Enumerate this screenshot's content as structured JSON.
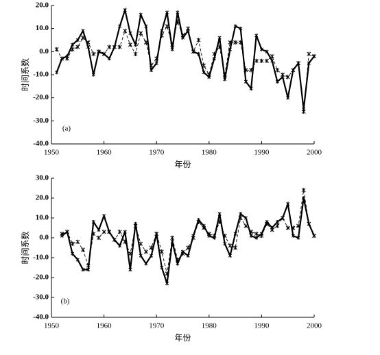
{
  "chart_data": [
    {
      "type": "line",
      "annotation": "(a)",
      "xlabel": "年份",
      "ylabel": "时间系数",
      "x": [
        1951,
        1952,
        1953,
        1954,
        1955,
        1956,
        1957,
        1958,
        1959,
        1960,
        1961,
        1962,
        1963,
        1964,
        1965,
        1966,
        1967,
        1968,
        1969,
        1970,
        1971,
        1972,
        1973,
        1974,
        1975,
        1976,
        1977,
        1978,
        1979,
        1980,
        1981,
        1982,
        1983,
        1984,
        1985,
        1986,
        1987,
        1988,
        1989,
        1990,
        1991,
        1992,
        1993,
        1994,
        1995,
        1996,
        1997,
        1998,
        1999,
        2000
      ],
      "series": [
        {
          "color": "#000000",
          "style": "solid",
          "values": [
            -9,
            -3,
            -2,
            3,
            5,
            9,
            2,
            -10,
            0,
            -1,
            -3,
            2,
            11,
            18,
            8,
            3,
            16,
            11,
            -8,
            -5,
            9,
            17,
            1,
            17,
            6,
            9,
            0,
            -1,
            -9,
            -11,
            -3,
            6,
            -12,
            1,
            11,
            10,
            -13,
            -16,
            7,
            1,
            0,
            -4,
            -13,
            -11,
            -20,
            -8,
            -5,
            -25,
            -5,
            -2
          ]
        },
        {
          "color": "#000000",
          "style": "dashed",
          "values": [
            1,
            -3,
            -3,
            1,
            2,
            6,
            4,
            -1,
            0,
            -1,
            2,
            2,
            2,
            9,
            3,
            -1,
            8,
            4,
            -6,
            -3,
            7,
            11,
            3,
            13,
            7,
            10,
            0,
            5,
            -6,
            -10,
            -1,
            2,
            -10,
            4,
            4,
            4,
            -8,
            -8,
            -4,
            -4,
            -4,
            -2,
            -8,
            -10,
            -11,
            -8,
            -5,
            -26,
            -1,
            -2
          ]
        }
      ],
      "xlim": [
        1950,
        2000
      ],
      "xticks": [
        1950,
        1960,
        1970,
        1980,
        1990,
        2000
      ],
      "ylim": [
        -40,
        20
      ],
      "yticks": [
        {
          "value": -40,
          "label": "-40.0"
        },
        {
          "value": -30,
          "label": "-30.0"
        },
        {
          "value": -20,
          "label": "-20.0"
        },
        {
          "value": -10,
          "label": "-10.0"
        },
        {
          "value": 0,
          "label": "0.0"
        },
        {
          "value": 10,
          "label": "10.0"
        },
        {
          "value": 20,
          "label": "20.0"
        }
      ]
    },
    {
      "type": "line",
      "annotation": "(b)",
      "xlabel": "年份",
      "ylabel": "时间系数",
      "x": [
        1952,
        1953,
        1954,
        1955,
        1956,
        1957,
        1958,
        1959,
        1960,
        1961,
        1962,
        1963,
        1964,
        1965,
        1966,
        1967,
        1968,
        1969,
        1970,
        1971,
        1972,
        1973,
        1974,
        1975,
        1976,
        1977,
        1978,
        1979,
        1980,
        1981,
        1982,
        1983,
        1984,
        1985,
        1986,
        1987,
        1988,
        1989,
        1990,
        1991,
        1992,
        1993,
        1994,
        1995,
        1996,
        1997,
        1998,
        1999,
        2000
      ],
      "series": [
        {
          "color": "#000000",
          "style": "solid",
          "values": [
            1,
            3,
            -8,
            -11,
            -16,
            -16,
            8,
            4,
            11,
            3,
            -1,
            -4,
            3,
            -16,
            7,
            -9,
            -13,
            -9,
            2,
            -15,
            -23,
            -2,
            -13,
            -7,
            -9,
            1,
            9,
            6,
            1,
            0,
            12,
            -3,
            -9,
            2,
            12,
            10,
            1,
            0,
            2,
            8,
            5,
            8,
            10,
            17,
            1,
            0,
            20,
            7,
            1
          ]
        },
        {
          "color": "#000000",
          "style": "dashed",
          "values": [
            2,
            3,
            -3,
            -2,
            -6,
            -14,
            2,
            0,
            3,
            3,
            -1,
            3,
            -2,
            -8,
            6,
            -3,
            -7,
            -5,
            2,
            -7,
            -18,
            0,
            -11,
            -8,
            -5,
            0,
            8,
            5,
            2,
            1,
            8,
            1,
            -4,
            -5,
            10,
            6,
            3,
            2,
            1,
            7,
            4,
            6,
            10,
            5,
            5,
            6,
            24,
            7,
            1
          ]
        }
      ],
      "xlim": [
        1950,
        2000
      ],
      "xticks": [
        1950,
        1960,
        1970,
        1980,
        1990,
        2000
      ],
      "ylim": [
        -40,
        30
      ],
      "yticks": [
        {
          "value": -40,
          "label": "-40.0"
        },
        {
          "value": -30,
          "label": "-30.0"
        },
        {
          "value": -20,
          "label": "-20.0"
        },
        {
          "value": -10,
          "label": "-10.0"
        },
        {
          "value": 0,
          "label": "0.0"
        },
        {
          "value": 10,
          "label": "10.0"
        },
        {
          "value": 20,
          "label": "20.0"
        },
        {
          "value": 30,
          "label": "30.0"
        }
      ]
    }
  ]
}
